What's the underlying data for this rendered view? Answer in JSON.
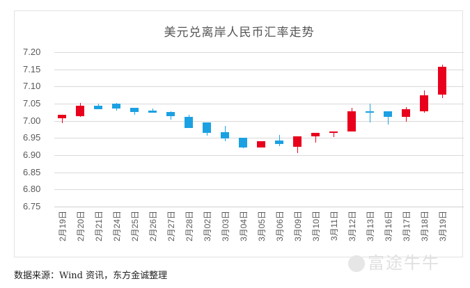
{
  "chart_data": {
    "type": "candlestick",
    "title": "美元兑离岸人民币汇率走势",
    "xlabel": "",
    "ylabel": "",
    "ylim": [
      6.75,
      7.2
    ],
    "yticks": [
      "7.20",
      "7.15",
      "7.10",
      "7.05",
      "7.00",
      "6.95",
      "6.90",
      "6.85",
      "6.80",
      "6.75"
    ],
    "grid": true,
    "legend": null,
    "up_color": "#e8001c",
    "down_color": "#1ba1e2",
    "categories": [
      "2月19日",
      "2月20日",
      "2月21日",
      "2月24日",
      "2月25日",
      "2月26日",
      "2月27日",
      "2月28日",
      "3月02日",
      "3月03日",
      "3月04日",
      "3月05日",
      "3月06日",
      "3月09日",
      "3月10日",
      "3月11日",
      "3月12日",
      "3月13日",
      "3月16日",
      "3月17日",
      "3月18日",
      "3月19日"
    ],
    "series": [
      {
        "name": "open",
        "values": [
          7.007,
          7.013,
          7.043,
          7.05,
          7.037,
          7.03,
          7.025,
          7.011,
          6.995,
          6.967,
          6.95,
          6.922,
          6.943,
          6.924,
          6.954,
          6.964,
          6.968,
          7.027,
          7.027,
          7.012,
          7.028,
          7.076
        ]
      },
      {
        "name": "high",
        "values": [
          7.017,
          7.053,
          7.05,
          7.053,
          7.037,
          7.035,
          7.027,
          7.017,
          6.995,
          6.985,
          6.95,
          6.94,
          6.958,
          6.954,
          6.965,
          6.968,
          7.038,
          7.05,
          7.027,
          7.04,
          7.088,
          7.163
        ]
      },
      {
        "name": "low",
        "values": [
          6.993,
          7.011,
          7.033,
          7.03,
          7.018,
          7.023,
          7.003,
          6.98,
          6.957,
          6.94,
          6.92,
          6.922,
          6.927,
          6.907,
          6.936,
          6.952,
          6.968,
          6.995,
          6.99,
          6.998,
          7.024,
          7.066
        ]
      },
      {
        "name": "close",
        "values": [
          7.017,
          7.043,
          7.033,
          7.035,
          7.025,
          7.023,
          7.013,
          6.98,
          6.965,
          6.948,
          6.922,
          6.94,
          6.932,
          6.954,
          6.965,
          6.968,
          7.028,
          7.024,
          7.012,
          7.034,
          7.075,
          7.158
        ]
      }
    ]
  },
  "footer": {
    "source": "数据来源：Wind 资讯，东方金诚整理",
    "watermark": "富途牛牛"
  }
}
